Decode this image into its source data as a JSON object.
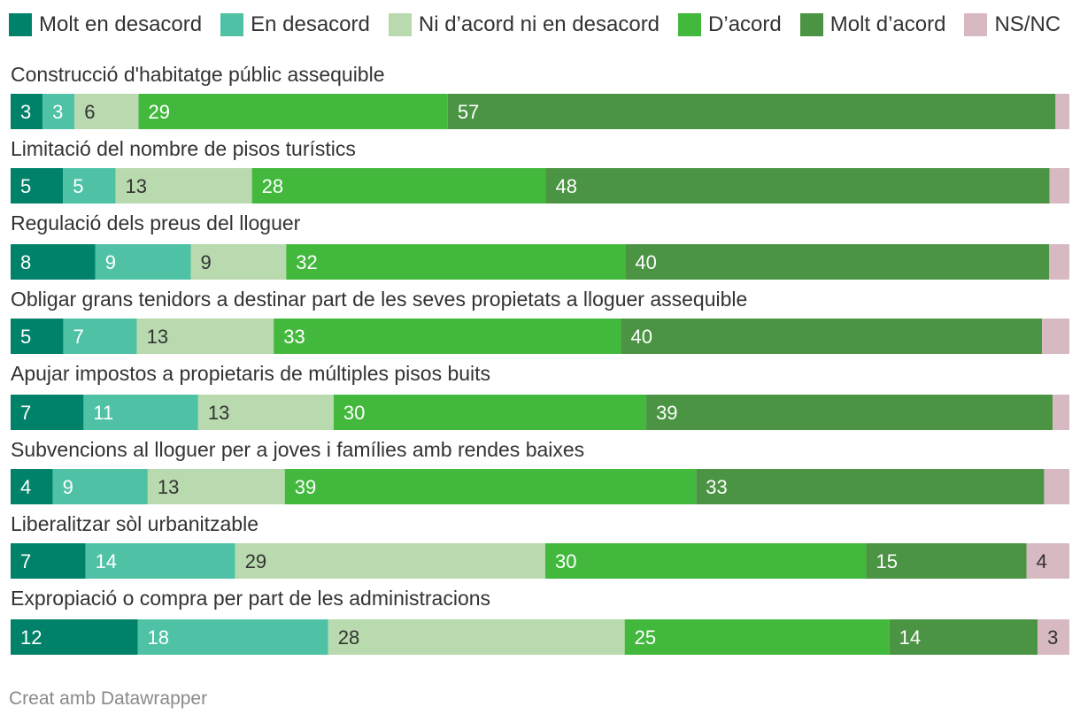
{
  "chart_data": {
    "type": "bar",
    "orientation": "horizontal",
    "stacked": true,
    "series": [
      {
        "name": "Molt en desacord",
        "color": "#00826a"
      },
      {
        "name": "En desacord",
        "color": "#4fc2a6"
      },
      {
        "name": "Ni d’acord ni en desacord",
        "color": "#b8daae"
      },
      {
        "name": "D’acord",
        "color": "#42b93c"
      },
      {
        "name": "Molt d’acord",
        "color": "#4b9443"
      },
      {
        "name": "NS/NC",
        "color": "#d7b9c1"
      }
    ],
    "rows": [
      {
        "label": "Construcció d'habitatge públic assequible",
        "values": [
          3,
          3,
          6,
          29,
          57,
          1.3
        ],
        "shown": [
          true,
          true,
          true,
          true,
          true,
          false
        ]
      },
      {
        "label": "Limitació del nombre de pisos turístics",
        "values": [
          5,
          5,
          13,
          28,
          48,
          1.9
        ],
        "shown": [
          true,
          true,
          true,
          true,
          true,
          false
        ]
      },
      {
        "label": "Regulació dels preus del lloguer",
        "values": [
          8,
          9,
          9,
          32,
          40,
          1.9
        ],
        "shown": [
          true,
          true,
          true,
          true,
          true,
          false
        ]
      },
      {
        "label": "Obligar grans tenidors a destinar part de les seves propietats a lloguer assequible",
        "values": [
          5,
          7,
          13,
          33,
          40,
          2.6
        ],
        "shown": [
          true,
          true,
          true,
          true,
          true,
          false
        ]
      },
      {
        "label": "Apujar impostos a propietaris de múltiples pisos buits",
        "values": [
          7,
          11,
          13,
          30,
          39,
          1.6
        ],
        "shown": [
          true,
          true,
          true,
          true,
          true,
          false
        ]
      },
      {
        "label": "Subvencions al lloguer per a joves i famílies amb rendes baixes",
        "values": [
          4,
          9,
          13,
          39,
          33,
          2.4
        ],
        "shown": [
          true,
          true,
          true,
          true,
          true,
          false
        ]
      },
      {
        "label": "Liberalitzar sòl urbanitzable",
        "values": [
          7,
          14,
          29,
          30,
          15,
          4
        ],
        "shown": [
          true,
          true,
          true,
          true,
          true,
          true
        ]
      },
      {
        "label": "Expropiació o compra per part de les administracions",
        "values": [
          12,
          18,
          28,
          25,
          14,
          3
        ],
        "shown": [
          true,
          true,
          true,
          true,
          true,
          true
        ]
      }
    ],
    "label_colors": [
      "#ffffff",
      "#ffffff",
      "#333333",
      "#ffffff",
      "#ffffff",
      "#333333"
    ],
    "legend_position": "top",
    "grid": false
  },
  "footer": {
    "credit": "Creat amb Datawrapper"
  }
}
